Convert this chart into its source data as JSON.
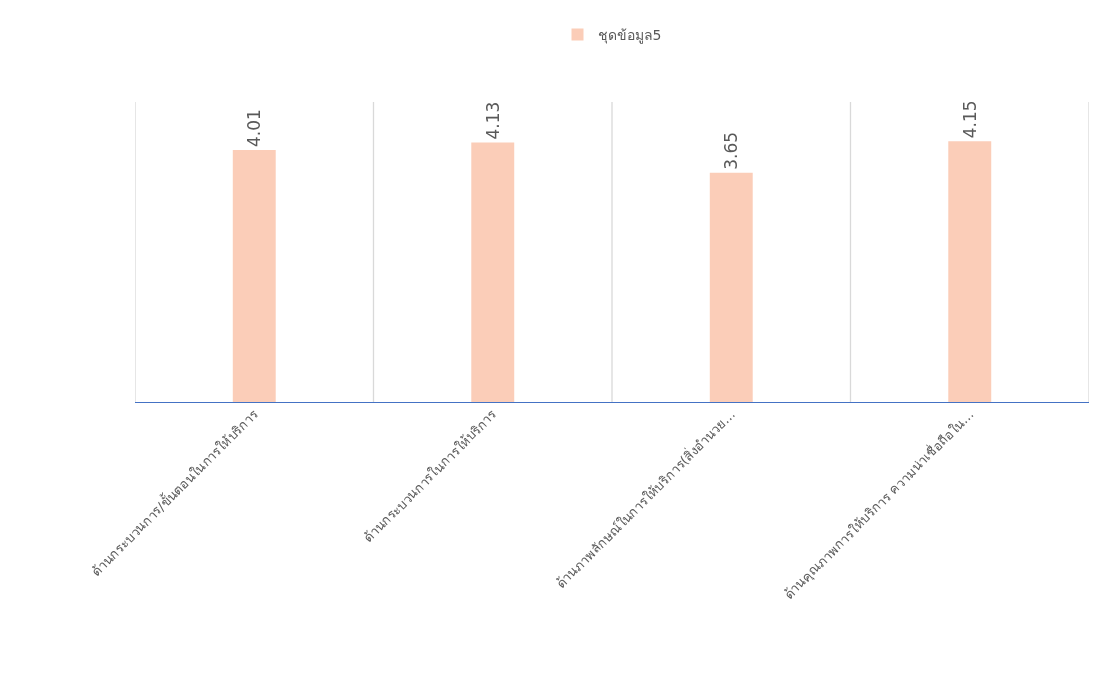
{
  "chart_data": {
    "type": "bar",
    "categories": [
      "ด้านกระบวนการ/ขั้นตอนในการให้บริการ",
      "ด้านกระบวนการในการให้บริการ",
      "ด้านภาพลักษณ์ในการให้บริการ(สิ่งอำนวย…",
      "ด้านคุณภาพการให้บริการ ความน่าเชื่อถือใน…"
    ],
    "series": [
      {
        "name": "ชุดข้อมูล5",
        "color": "#fbcdb8",
        "values": [
          4.01,
          4.13,
          3.65,
          4.15
        ]
      }
    ],
    "data_labels": true,
    "legend": "top",
    "grid": "x"
  }
}
